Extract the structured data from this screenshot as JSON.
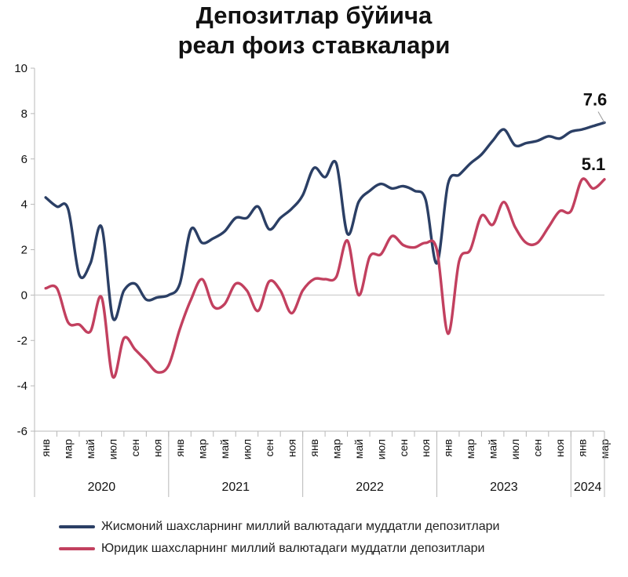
{
  "chart_data": {
    "type": "line",
    "title_lines": [
      "Депозитлар бўйича",
      "реал фоиз ставкалари"
    ],
    "ylim": [
      -6,
      10
    ],
    "yticks": [
      -6,
      -4,
      -2,
      0,
      2,
      4,
      6,
      8,
      10
    ],
    "grid": false,
    "legend_position": "bottom",
    "month_labels": [
      "янв",
      "мар",
      "май",
      "июл",
      "сен",
      "ноя",
      "янв",
      "мар",
      "май",
      "июл",
      "сен",
      "ноя",
      "янв",
      "мар",
      "май",
      "июл",
      "сен",
      "ноя",
      "янв",
      "мар",
      "май",
      "июл",
      "сен",
      "ноя",
      "янв",
      "мар"
    ],
    "year_labels": [
      "2020",
      "2021",
      "2022",
      "2023",
      "2024"
    ],
    "year_month_counts": [
      12,
      12,
      12,
      12,
      3
    ],
    "x": [
      "2020-01",
      "2020-02",
      "2020-03",
      "2020-04",
      "2020-05",
      "2020-06",
      "2020-07",
      "2020-08",
      "2020-09",
      "2020-10",
      "2020-11",
      "2020-12",
      "2021-01",
      "2021-02",
      "2021-03",
      "2021-04",
      "2021-05",
      "2021-06",
      "2021-07",
      "2021-08",
      "2021-09",
      "2021-10",
      "2021-11",
      "2021-12",
      "2022-01",
      "2022-02",
      "2022-03",
      "2022-04",
      "2022-05",
      "2022-06",
      "2022-07",
      "2022-08",
      "2022-09",
      "2022-10",
      "2022-11",
      "2022-12",
      "2023-01",
      "2023-02",
      "2023-03",
      "2023-04",
      "2023-05",
      "2023-06",
      "2023-07",
      "2023-08",
      "2023-09",
      "2023-10",
      "2023-11",
      "2023-12",
      "2024-01",
      "2024-02",
      "2024-03"
    ],
    "series": [
      {
        "name": "Жисмоний шахсларнинг миллий валютадаги муддатли депозитлари",
        "color": "#2b3f65",
        "values": [
          4.3,
          3.9,
          3.8,
          0.9,
          1.4,
          3.0,
          -1.0,
          0.2,
          0.5,
          -0.2,
          -0.1,
          0.0,
          0.5,
          2.9,
          2.3,
          2.5,
          2.8,
          3.4,
          3.4,
          3.9,
          2.9,
          3.4,
          3.8,
          4.4,
          5.6,
          5.2,
          5.8,
          2.7,
          4.1,
          4.6,
          4.9,
          4.7,
          4.8,
          4.6,
          4.2,
          1.4,
          4.9,
          5.3,
          5.8,
          6.2,
          6.8,
          7.3,
          6.6,
          6.7,
          6.8,
          7.0,
          6.9,
          7.2,
          7.3,
          7.45,
          7.6
        ],
        "end_label": "7.6"
      },
      {
        "name": "Юридик шахсларнинг миллий валютадаги муддатли депозитлари",
        "color": "#c2405f",
        "values": [
          0.3,
          0.3,
          -1.2,
          -1.3,
          -1.6,
          -0.1,
          -3.6,
          -1.9,
          -2.4,
          -2.9,
          -3.4,
          -3.1,
          -1.5,
          -0.2,
          0.7,
          -0.5,
          -0.4,
          0.5,
          0.2,
          -0.7,
          0.6,
          0.2,
          -0.8,
          0.2,
          0.7,
          0.7,
          0.8,
          2.4,
          0.0,
          1.7,
          1.8,
          2.6,
          2.2,
          2.1,
          2.3,
          2.0,
          -1.7,
          1.5,
          2.0,
          3.5,
          3.1,
          4.1,
          3.0,
          2.3,
          2.3,
          3.0,
          3.7,
          3.7,
          5.1,
          4.7,
          5.1
        ],
        "end_label": "5.1"
      }
    ],
    "axis_color": "#b8b8b8",
    "zero_line_color": "#cfcfcf"
  }
}
